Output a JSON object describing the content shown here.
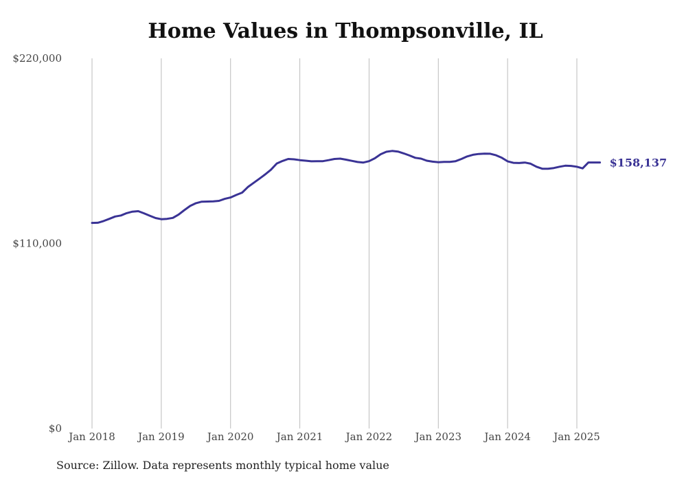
{
  "title": "Home Values in Thompsonville, IL",
  "source": "Source: Zillow. Data represents monthly typical home value",
  "colors": {
    "line": "#3a3395",
    "grid": "#bbbbbb",
    "text": "#444444"
  },
  "chart_data": {
    "type": "line",
    "title": "Home Values in Thompsonville, IL",
    "xlabel": "",
    "ylabel": "",
    "ylim": [
      0,
      220000
    ],
    "y_ticks": [
      {
        "value": 0,
        "label": "$0"
      },
      {
        "value": 110000,
        "label": "$110,000"
      },
      {
        "value": 220000,
        "label": "$220,000"
      }
    ],
    "x_ticks": [
      {
        "value": 2018.0,
        "label": "Jan 2018"
      },
      {
        "value": 2019.0,
        "label": "Jan 2019"
      },
      {
        "value": 2020.0,
        "label": "Jan 2020"
      },
      {
        "value": 2021.0,
        "label": "Jan 2021"
      },
      {
        "value": 2022.0,
        "label": "Jan 2022"
      },
      {
        "value": 2023.0,
        "label": "Jan 2023"
      },
      {
        "value": 2024.0,
        "label": "Jan 2024"
      },
      {
        "value": 2025.0,
        "label": "Jan 2025"
      }
    ],
    "grid": "vertical",
    "end_label": "$158,137",
    "series": [
      {
        "x": [
          2018.0,
          2018.083,
          2018.167,
          2018.25,
          2018.333,
          2018.417,
          2018.5,
          2018.583,
          2018.667,
          2018.75,
          2018.833,
          2018.917,
          2019.0,
          2019.083,
          2019.167,
          2019.25,
          2019.333,
          2019.417,
          2019.5,
          2019.583,
          2019.667,
          2019.75,
          2019.833,
          2019.917,
          2020.0,
          2020.083,
          2020.167,
          2020.25,
          2020.333,
          2020.417,
          2020.5,
          2020.583,
          2020.667,
          2020.75,
          2020.833,
          2020.917,
          2021.0,
          2021.083,
          2021.167,
          2021.25,
          2021.333,
          2021.417,
          2021.5,
          2021.583,
          2021.667,
          2021.75,
          2021.833,
          2021.917,
          2022.0,
          2022.083,
          2022.167,
          2022.25,
          2022.333,
          2022.417,
          2022.5,
          2022.583,
          2022.667,
          2022.75,
          2022.833,
          2022.917,
          2023.0,
          2023.083,
          2023.167,
          2023.25,
          2023.333,
          2023.417,
          2023.5,
          2023.583,
          2023.667,
          2023.75,
          2023.833,
          2023.917,
          2024.0,
          2024.083,
          2024.167,
          2024.25,
          2024.333,
          2024.417,
          2024.5,
          2024.583,
          2024.667,
          2024.75,
          2024.833,
          2024.917,
          2025.0,
          2025.083,
          2025.167,
          2025.25,
          2025.333
        ],
        "values": [
          122200,
          122300,
          123300,
          124600,
          126000,
          126600,
          128000,
          128900,
          129200,
          127900,
          126500,
          125100,
          124400,
          124600,
          125200,
          127200,
          129800,
          132300,
          133900,
          134800,
          134900,
          135000,
          135300,
          136500,
          137300,
          138800,
          140200,
          143500,
          146000,
          148500,
          151000,
          153800,
          157500,
          159000,
          160200,
          160000,
          159500,
          159200,
          158800,
          158900,
          158900,
          159500,
          160200,
          160400,
          159800,
          159100,
          158400,
          158100,
          158900,
          160600,
          163000,
          164500,
          165000,
          164600,
          163500,
          162300,
          160900,
          160400,
          159200,
          158600,
          158300,
          158500,
          158500,
          158900,
          160200,
          161700,
          162700,
          163200,
          163400,
          163300,
          162400,
          160900,
          158800,
          157900,
          157800,
          158100,
          157400,
          155600,
          154400,
          154400,
          154800,
          155600,
          156200,
          156100,
          155600,
          154600,
          158137,
          158137,
          158137
        ]
      }
    ]
  }
}
